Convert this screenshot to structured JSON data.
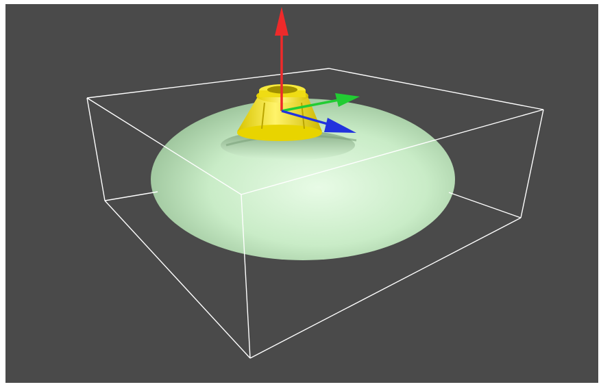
{
  "viewport": {
    "background": "#4a4a4a",
    "frame": "#ffffff"
  },
  "scene": {
    "torus_color": "#c9ecc7",
    "torus_shadow": "#9fc89e",
    "cone_color": "#f2e11a",
    "cone_shadow": "#c7b200",
    "bbox_color": "#ffffff",
    "axes": {
      "x_color": "#22cc33",
      "y_color": "#2233dd",
      "z_color": "#ee2a2a"
    },
    "icons": [
      "bounding-box",
      "torus-mesh",
      "cone-mesh",
      "axis-gizmo"
    ]
  }
}
